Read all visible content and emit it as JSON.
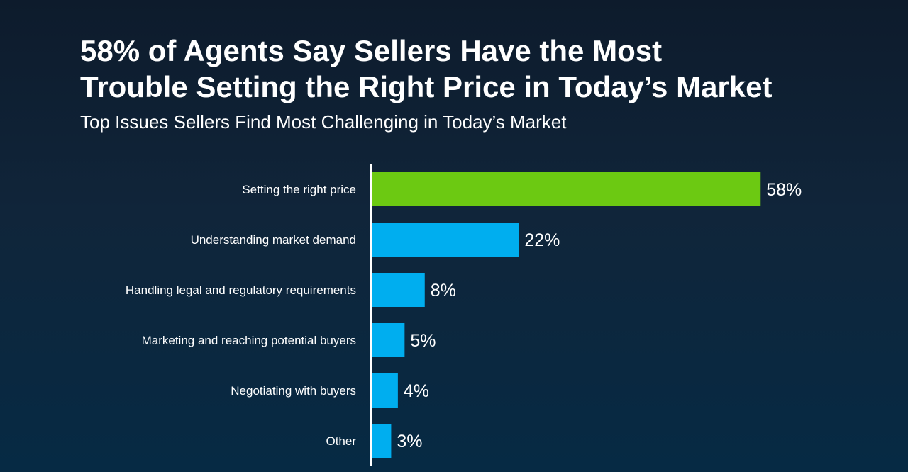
{
  "header": {
    "title_line1": "58% of Agents Say Sellers Have the Most",
    "title_line2": "Trouble Setting the Right Price in Today’s Market",
    "subtitle": "Top Issues Sellers Find Most Challenging in Today’s Market"
  },
  "colors": {
    "highlight": "#6cc912",
    "bar": "#00aeef",
    "axis": "#ffffff"
  },
  "chart_data": {
    "type": "bar",
    "orientation": "horizontal",
    "categories": [
      "Setting the right price",
      "Understanding market demand",
      "Handling legal and regulatory requirements",
      "Marketing and reaching potential buyers",
      "Negotiating with buyers",
      "Other"
    ],
    "values": [
      58,
      22,
      8,
      5,
      4,
      3
    ],
    "data_labels": [
      "58%",
      "22%",
      "8%",
      "5%",
      "4%",
      "3%"
    ],
    "highlight_index": 0,
    "title": "58% of Agents Say Sellers Have the Most Trouble Setting the Right Price in Today’s Market",
    "subtitle": "Top Issues Sellers Find Most Challenging in Today’s Market",
    "xlim": [
      0,
      100
    ],
    "grid": false,
    "legend": "none"
  }
}
